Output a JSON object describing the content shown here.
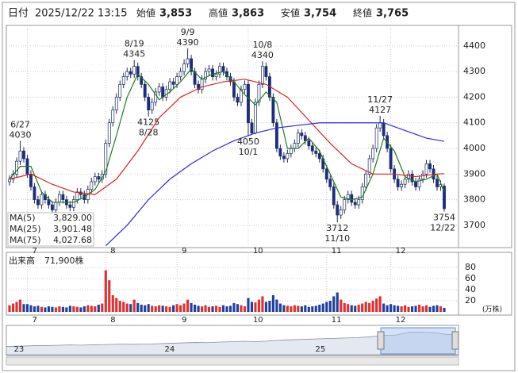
{
  "header": {
    "date_label": "日付",
    "date": "2025/12/22 13:15",
    "fields": [
      {
        "label": "始値",
        "value": "3,853",
        "color": "#000000"
      },
      {
        "label": "高値",
        "value": "3,863",
        "color": "#d01010"
      },
      {
        "label": "安値",
        "value": "3,754",
        "color": "#108010"
      },
      {
        "label": "終値",
        "value": "3,765",
        "color": "#000000"
      }
    ]
  },
  "chart_data": {
    "type": "candlestick",
    "up_color": "#ffffff",
    "down_color": "#1c2c8c",
    "ylim": [
      3613,
      4480
    ],
    "yticks": [
      3700,
      3800,
      3900,
      4000,
      4100,
      4200,
      4300,
      4400
    ],
    "grid": true,
    "xticks": [
      {
        "value": 5,
        "label": "7"
      },
      {
        "value": 27,
        "label": "8"
      },
      {
        "value": 47,
        "label": "9"
      },
      {
        "value": 67,
        "label": "10"
      },
      {
        "value": 89,
        "label": "11"
      },
      {
        "value": 107,
        "label": "12"
      }
    ],
    "candles": {
      "open": [
        3870,
        3880,
        3900,
        3950,
        3990,
        3960,
        3900,
        3850,
        3800,
        3780,
        3820,
        3800,
        3780,
        3760,
        3790,
        3820,
        3800,
        3780,
        3770,
        3800,
        3830,
        3820,
        3800,
        3840,
        3870,
        3890,
        3880,
        3900,
        4020,
        4100,
        4150,
        4200,
        4250,
        4280,
        4300,
        4290,
        4320,
        4280,
        4250,
        4200,
        4150,
        4180,
        4220,
        4240,
        4200,
        4230,
        4260,
        4250,
        4280,
        4300,
        4330,
        4350,
        4300,
        4250,
        4230,
        4270,
        4300,
        4310,
        4280,
        4290,
        4320,
        4300,
        4280,
        4260,
        4200,
        4180,
        4230,
        4250,
        4100,
        4060,
        4180,
        4250,
        4320,
        4280,
        4200,
        4100,
        4000,
        3970,
        3960,
        3980,
        4000,
        4020,
        4060,
        4050,
        4030,
        4010,
        3990,
        3980,
        3960,
        3920,
        3880,
        3850,
        3780,
        3740,
        3760,
        3800,
        3820,
        3790,
        3780,
        3800,
        3850,
        3900,
        3960,
        4000,
        4080,
        4100,
        4050,
        4000,
        3920,
        3880,
        3850,
        3860,
        3880,
        3900,
        3870,
        3850,
        3880,
        3900,
        3940,
        3920,
        3880,
        3850,
        3853
      ],
      "high": [
        3895,
        3915,
        3965,
        4030,
        4005,
        3975,
        3915,
        3865,
        3815,
        3835,
        3835,
        3815,
        3795,
        3805,
        3835,
        3835,
        3815,
        3795,
        3815,
        3845,
        3845,
        3835,
        3855,
        3885,
        3905,
        3905,
        3915,
        4035,
        4115,
        4165,
        4215,
        4265,
        4295,
        4315,
        4315,
        4345,
        4335,
        4295,
        4265,
        4215,
        4195,
        4235,
        4255,
        4255,
        4245,
        4275,
        4275,
        4295,
        4315,
        4348,
        4390,
        4365,
        4315,
        4265,
        4285,
        4315,
        4325,
        4325,
        4305,
        4335,
        4335,
        4315,
        4295,
        4275,
        4215,
        4245,
        4265,
        4265,
        4115,
        4195,
        4265,
        4340,
        4335,
        4295,
        4215,
        4115,
        4015,
        3985,
        3995,
        4015,
        4035,
        4075,
        4075,
        4065,
        4045,
        4025,
        4005,
        3995,
        3975,
        3935,
        3895,
        3865,
        3795,
        3775,
        3815,
        3835,
        3835,
        3805,
        3815,
        3865,
        3915,
        3975,
        4015,
        4095,
        4127,
        4115,
        4065,
        4015,
        3935,
        3895,
        3875,
        3895,
        3915,
        3915,
        3885,
        3895,
        3915,
        3955,
        3955,
        3935,
        3895,
        3875,
        3863
      ],
      "low": [
        3855,
        3865,
        3885,
        3935,
        3945,
        3885,
        3835,
        3785,
        3765,
        3765,
        3785,
        3765,
        3745,
        3745,
        3775,
        3785,
        3765,
        3755,
        3755,
        3785,
        3805,
        3785,
        3785,
        3825,
        3855,
        3865,
        3865,
        3885,
        4005,
        4085,
        4135,
        4185,
        4235,
        4265,
        4275,
        4275,
        4265,
        4235,
        4185,
        4125,
        4135,
        4165,
        4205,
        4185,
        4185,
        4215,
        4235,
        4235,
        4265,
        4285,
        4315,
        4285,
        4235,
        4215,
        4215,
        4255,
        4285,
        4265,
        4265,
        4275,
        4285,
        4265,
        4245,
        4185,
        4165,
        4165,
        4215,
        4050,
        4055,
        4055,
        4165,
        4235,
        4265,
        4185,
        4085,
        3985,
        3955,
        3945,
        3945,
        3965,
        3985,
        4005,
        4035,
        4015,
        3995,
        3975,
        3965,
        3945,
        3905,
        3865,
        3835,
        3765,
        3712,
        3725,
        3745,
        3785,
        3775,
        3765,
        3765,
        3785,
        3835,
        3885,
        3945,
        3985,
        4065,
        4035,
        3985,
        3905,
        3865,
        3835,
        3835,
        3845,
        3865,
        3855,
        3835,
        3835,
        3865,
        3885,
        3905,
        3865,
        3835,
        3835,
        3754
      ],
      "close": [
        3880,
        3900,
        3950,
        3990,
        3960,
        3900,
        3850,
        3800,
        3780,
        3820,
        3800,
        3780,
        3760,
        3790,
        3820,
        3800,
        3780,
        3770,
        3800,
        3830,
        3820,
        3800,
        3840,
        3870,
        3890,
        3880,
        3900,
        4020,
        4100,
        4150,
        4200,
        4250,
        4280,
        4300,
        4290,
        4320,
        4280,
        4250,
        4200,
        4150,
        4180,
        4220,
        4240,
        4200,
        4230,
        4260,
        4250,
        4280,
        4300,
        4330,
        4350,
        4300,
        4250,
        4230,
        4270,
        4300,
        4310,
        4280,
        4290,
        4320,
        4300,
        4280,
        4260,
        4200,
        4180,
        4230,
        4250,
        4100,
        4060,
        4180,
        4250,
        4320,
        4280,
        4200,
        4100,
        4000,
        3970,
        3960,
        3980,
        4000,
        4020,
        4060,
        4050,
        4030,
        4010,
        3990,
        3980,
        3960,
        3920,
        3880,
        3850,
        3780,
        3740,
        3760,
        3800,
        3820,
        3790,
        3780,
        3800,
        3850,
        3900,
        3960,
        4000,
        4080,
        4100,
        4050,
        4000,
        3920,
        3880,
        3850,
        3860,
        3880,
        3900,
        3870,
        3850,
        3880,
        3900,
        3940,
        3920,
        3880,
        3850,
        3860,
        3765
      ]
    },
    "high_labels": [
      {
        "date": "6/27",
        "value": 4030
      },
      {
        "date": "8/19",
        "value": 4345
      },
      {
        "date": "9/9",
        "value": 4390
      },
      {
        "date": "10/8",
        "value": 4340
      },
      {
        "date": "11/27",
        "value": 4127
      }
    ],
    "low_labels": [
      {
        "date": "8/28",
        "value": 4125
      },
      {
        "date": "10/1",
        "value": 4050
      },
      {
        "date": "11/10",
        "value": 3712
      },
      {
        "date": "12/22",
        "value": 3754
      }
    ],
    "series": [
      {
        "name": "MA(5)",
        "color": "#1f7a1f",
        "legend_value": "3,829.00",
        "x": [
          0,
          3,
          6,
          9,
          12,
          15,
          18,
          21,
          24,
          27,
          30,
          33,
          36,
          39,
          42,
          45,
          48,
          51,
          54,
          57,
          60,
          63,
          66,
          69,
          72,
          75,
          78,
          81,
          84,
          87,
          90,
          93,
          96,
          99,
          102,
          105,
          108,
          111,
          114,
          117,
          120,
          122
        ],
        "values": [
          3880,
          3930,
          3930,
          3830,
          3790,
          3790,
          3790,
          3810,
          3840,
          3910,
          4050,
          4200,
          4290,
          4250,
          4190,
          4220,
          4260,
          4310,
          4270,
          4290,
          4300,
          4260,
          4210,
          4170,
          4220,
          4180,
          4000,
          4000,
          4040,
          3990,
          3900,
          3810,
          3800,
          3810,
          3900,
          4040,
          3990,
          3890,
          3870,
          3880,
          3900,
          3829
        ]
      },
      {
        "name": "MA(25)",
        "color": "#e02020",
        "legend_value": "3,901.48",
        "x": [
          0,
          6,
          12,
          18,
          24,
          30,
          36,
          42,
          48,
          54,
          60,
          66,
          72,
          78,
          84,
          90,
          96,
          102,
          108,
          114,
          120,
          122
        ],
        "values": [
          3880,
          3900,
          3860,
          3830,
          3820,
          3880,
          3990,
          4120,
          4200,
          4240,
          4260,
          4270,
          4250,
          4200,
          4110,
          4020,
          3940,
          3900,
          3900,
          3890,
          3900,
          3901.48
        ]
      },
      {
        "name": "MA(75)",
        "color": "#2a2ae0",
        "legend_value": "4,027.68",
        "x": [
          27,
          33,
          39,
          45,
          51,
          57,
          63,
          69,
          75,
          81,
          87,
          93,
          99,
          105,
          111,
          117,
          122
        ],
        "values": [
          3620,
          3700,
          3800,
          3880,
          3940,
          3990,
          4030,
          4060,
          4080,
          4090,
          4100,
          4100,
          4100,
          4100,
          4070,
          4040,
          4027.68
        ]
      }
    ],
    "volume": {
      "label": "出来高",
      "last_label": "71,900株",
      "unit": "(万株)",
      "up_color": "#e03030",
      "down_color": "#2040a0",
      "ylim": [
        0,
        100
      ],
      "yticks": [
        20,
        40,
        60,
        80
      ],
      "values": [
        12,
        15,
        18,
        22,
        14,
        14,
        12,
        10,
        11,
        9,
        8,
        10,
        9,
        8,
        10,
        9,
        8,
        11,
        10,
        9,
        8,
        10,
        12,
        11,
        10,
        13,
        15,
        75,
        57,
        30,
        25,
        20,
        18,
        15,
        14,
        22,
        16,
        13,
        12,
        14,
        11,
        10,
        12,
        11,
        10,
        9,
        12,
        14,
        12,
        15,
        22,
        16,
        13,
        11,
        10,
        12,
        9,
        10,
        11,
        9,
        12,
        10,
        11,
        16,
        14,
        12,
        10,
        25,
        18,
        17,
        22,
        28,
        18,
        20,
        30,
        22,
        15,
        12,
        11,
        10,
        12,
        11,
        10,
        12,
        9,
        10,
        11,
        13,
        15,
        18,
        20,
        28,
        35,
        22,
        16,
        14,
        12,
        11,
        13,
        15,
        18,
        16,
        20,
        24,
        28,
        15,
        12,
        14,
        12,
        11,
        10,
        12,
        9,
        10,
        11,
        13,
        10,
        12,
        9,
        11,
        12,
        10,
        7.19
      ]
    },
    "navigator": {
      "xlim": [
        0,
        36
      ],
      "ylim": [
        1500,
        4800
      ],
      "xticks": [
        {
          "value": 1,
          "label": "23"
        },
        {
          "value": 13,
          "label": "24"
        },
        {
          "value": 25,
          "label": "25"
        }
      ],
      "values": [
        2500,
        2550,
        2600,
        2620,
        2650,
        2700,
        2680,
        2720,
        2750,
        2800,
        2780,
        2800,
        2850,
        2900,
        2950,
        3000,
        2980,
        3050,
        3100,
        3150,
        3100,
        3200,
        3300,
        3350,
        3400,
        3450,
        3500,
        3550,
        3600,
        3700,
        3850,
        3900,
        4250,
        4280,
        4200,
        4000,
        3900
      ]
    }
  }
}
